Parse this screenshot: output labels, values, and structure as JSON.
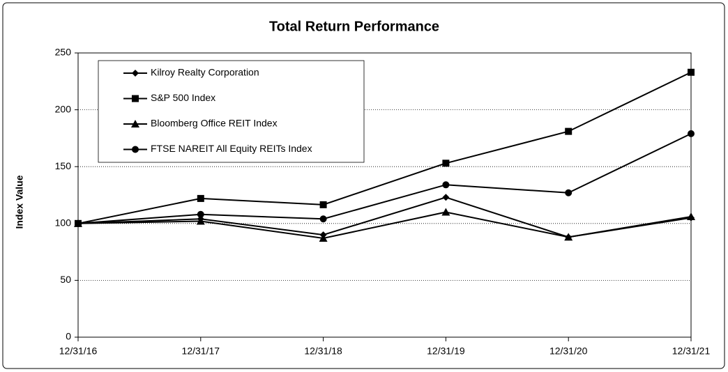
{
  "chart_data": {
    "type": "line",
    "title": "Total Return Performance",
    "y_label": "Index Value",
    "categories": [
      "12/31/16",
      "12/31/17",
      "12/31/18",
      "12/31/19",
      "12/31/20",
      "12/31/21"
    ],
    "series": [
      {
        "name": "Kilroy Realty Corporation",
        "color": "#000000",
        "marker": "diamond",
        "values": [
          100,
          104,
          90,
          123,
          88,
          105
        ]
      },
      {
        "name": "S&P 500 Index",
        "color": "#000000",
        "marker": "square",
        "values": [
          100,
          122,
          116.5,
          153,
          181,
          233
        ]
      },
      {
        "name": "Bloomberg Office REIT Index",
        "color": "#000000",
        "marker": "triangle",
        "values": [
          100,
          102,
          87,
          110,
          88,
          106
        ]
      },
      {
        "name": "FTSE NAREIT All Equity REITs Index",
        "color": "#000000",
        "marker": "circle",
        "values": [
          100,
          108,
          104,
          134,
          127,
          179
        ]
      }
    ],
    "ylim": [
      0,
      250
    ],
    "yticks": [
      0,
      50,
      100,
      150,
      200,
      250
    ],
    "grid": true,
    "legend": "upper-left"
  }
}
